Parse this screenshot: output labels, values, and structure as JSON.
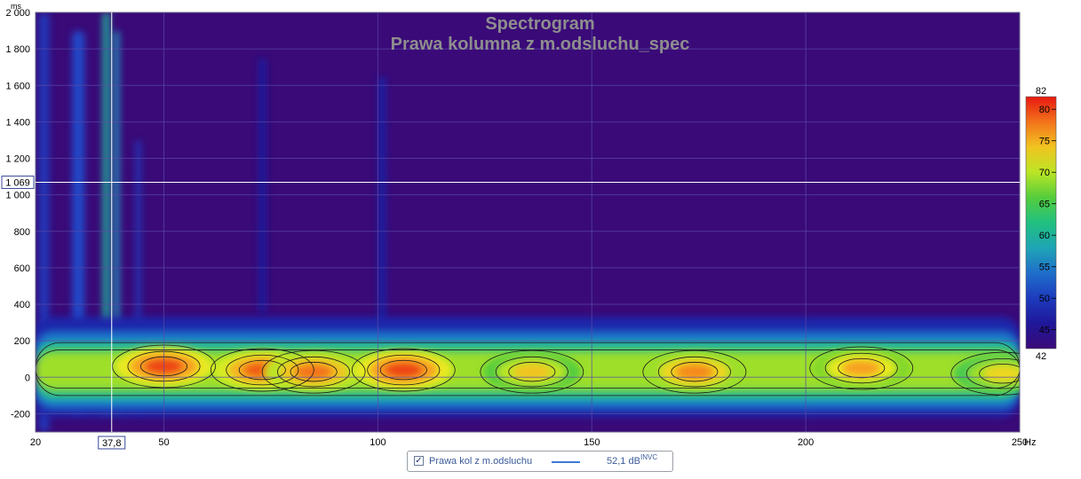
{
  "chart_data": {
    "type": "heatmap",
    "title": "Spectrogram",
    "subtitle": "Prawa kolumna z m.odsluchu_spec",
    "y_unit": "ms",
    "x_unit": "Hz",
    "x_range": [
      20,
      250
    ],
    "y_range": [
      -300,
      2000
    ],
    "x_ticks": [
      "20",
      "50",
      "100",
      "150",
      "200",
      "250"
    ],
    "x_tick_values": [
      20,
      50,
      100,
      150,
      200,
      250
    ],
    "y_ticks": [
      "2 000",
      "1 800",
      "1 600",
      "1 400",
      "1 200",
      "1 000",
      "800",
      "600",
      "400",
      "200",
      "0",
      "-200"
    ],
    "y_tick_values": [
      2000,
      1800,
      1600,
      1400,
      1200,
      1000,
      800,
      600,
      400,
      200,
      0,
      -200
    ],
    "cursor": {
      "x": 37.8,
      "y": 1069,
      "x_label": "37,8",
      "y_label": "1 069"
    },
    "colorbar": {
      "max_label": "82",
      "min_label": "42",
      "max": 82,
      "min": 42,
      "ticks": [
        "80",
        "75",
        "70",
        "65",
        "60",
        "55",
        "50",
        "45"
      ],
      "tick_values": [
        80,
        75,
        70,
        65,
        60,
        55,
        50,
        45
      ]
    },
    "legend": {
      "label": "Prawa kol z m.odsluchu",
      "value": "52,1 dB",
      "suffix": "INVC",
      "checked": true
    },
    "peaks_db": [
      {
        "freq_hz": 50,
        "time_ms": 60,
        "level_db": 80
      },
      {
        "freq_hz": 73,
        "time_ms": 40,
        "level_db": 79
      },
      {
        "freq_hz": 85,
        "time_ms": 30,
        "level_db": 78
      },
      {
        "freq_hz": 106,
        "time_ms": 40,
        "level_db": 80
      },
      {
        "freq_hz": 136,
        "time_ms": 30,
        "level_db": 74
      },
      {
        "freq_hz": 174,
        "time_ms": 30,
        "level_db": 77
      },
      {
        "freq_hz": 213,
        "time_ms": 50,
        "level_db": 76
      },
      {
        "freq_hz": 246,
        "time_ms": 20,
        "level_db": 73
      }
    ]
  }
}
